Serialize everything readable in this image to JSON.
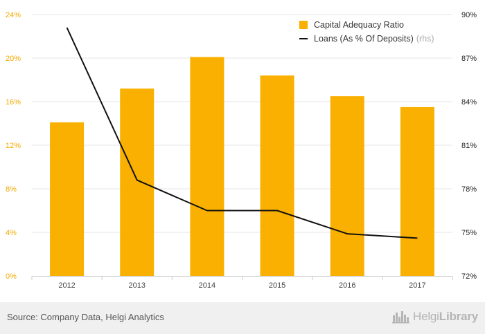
{
  "chart_data": {
    "type": "bar+line",
    "categories": [
      "2012",
      "2013",
      "2014",
      "2015",
      "2016",
      "2017"
    ],
    "series": [
      {
        "name": "Capital Adequacy Ratio",
        "type": "bar",
        "axis": "left",
        "values": [
          14.1,
          17.2,
          20.1,
          18.4,
          16.5,
          15.5
        ]
      },
      {
        "name": "Loans (As % Of Deposits)",
        "note": "(rhs)",
        "type": "line",
        "axis": "right",
        "values": [
          89.1,
          78.6,
          76.5,
          76.5,
          74.9,
          74.6
        ]
      }
    ],
    "y_left": {
      "min": 0,
      "max": 24,
      "ticks": [
        "0%",
        "4%",
        "8%",
        "12%",
        "16%",
        "20%",
        "24%"
      ]
    },
    "y_right": {
      "min": 72,
      "max": 90,
      "ticks": [
        "72%",
        "75%",
        "78%",
        "81%",
        "84%",
        "87%",
        "90%"
      ]
    },
    "grid": true,
    "legend_position": "top-right",
    "colors": {
      "bar": "#f9b000",
      "line": "#111111",
      "left_axis_text": "#f2a900",
      "grid": "#e6e6e6"
    }
  },
  "footer": {
    "source": "Source: Company Data, Helgi Analytics",
    "brand_light": "Helgi",
    "brand_bold": "Library",
    "brand_icon": "city-skyline-icon"
  }
}
